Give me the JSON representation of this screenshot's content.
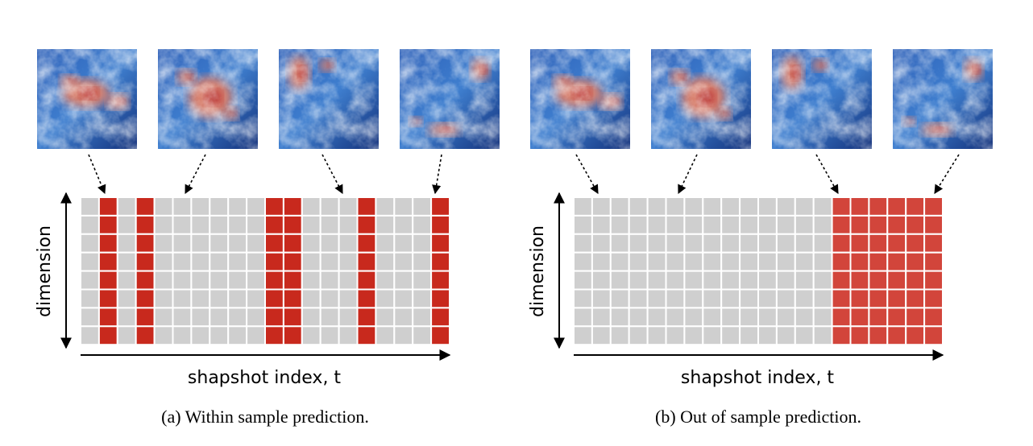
{
  "panels": [
    {
      "axis_y_label": "dimension",
      "axis_x_label": "shapshot index, t",
      "caption": "(a) Within sample prediction."
    },
    {
      "axis_y_label": "dimension",
      "axis_x_label": "shapshot index, t",
      "caption": "(b) Out of sample prediction."
    }
  ]
}
